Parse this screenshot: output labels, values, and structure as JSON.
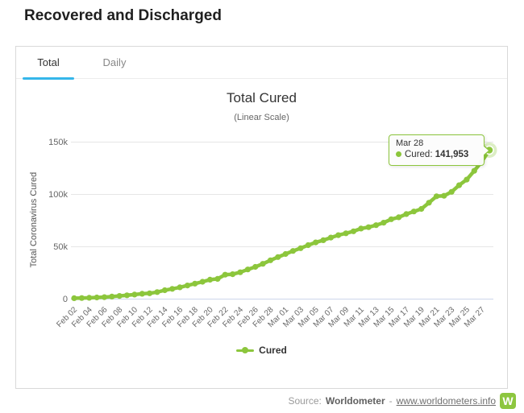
{
  "page": {
    "title": "Recovered and Discharged"
  },
  "tabs": [
    {
      "label": "Total",
      "active": true
    },
    {
      "label": "Daily",
      "active": false
    }
  ],
  "tooltip": {
    "date": "Mar 28",
    "series_label": "Cured:",
    "value": "141,953"
  },
  "footer": {
    "source_label": "Source:",
    "source_name": "Worldometer",
    "separator": "-",
    "link": "www.worldometers.info",
    "logo_letter": "W"
  },
  "colors": {
    "series_green": "#8cc63c",
    "brand_green": "#8dc63f",
    "tab_accent": "#35b6ea",
    "grid": "#e6e6e6",
    "axis_line": "#ccd6eb"
  },
  "chart_data": {
    "type": "line",
    "title": "Total Cured",
    "subtitle": "(Linear Scale)",
    "ylabel": "Total Coronavirus Cured",
    "series": [
      {
        "name": "Cured",
        "color": "#8cc63c"
      }
    ],
    "series_name": "Cured",
    "legend_position": "bottom",
    "grid": true,
    "ylim": [
      0,
      150000
    ],
    "yticks": [
      {
        "v": 0,
        "label": "0"
      },
      {
        "v": 50000,
        "label": "50k"
      },
      {
        "v": 100000,
        "label": "100k"
      },
      {
        "v": 150000,
        "label": "150k"
      }
    ],
    "xtick_every": 2,
    "categories": [
      "Feb 02",
      "Feb 03",
      "Feb 04",
      "Feb 05",
      "Feb 06",
      "Feb 07",
      "Feb 08",
      "Feb 09",
      "Feb 10",
      "Feb 11",
      "Feb 12",
      "Feb 13",
      "Feb 14",
      "Feb 15",
      "Feb 16",
      "Feb 17",
      "Feb 18",
      "Feb 19",
      "Feb 20",
      "Feb 21",
      "Feb 22",
      "Feb 23",
      "Feb 24",
      "Feb 25",
      "Feb 26",
      "Feb 27",
      "Feb 28",
      "Feb 29",
      "Mar 01",
      "Mar 02",
      "Mar 03",
      "Mar 04",
      "Mar 05",
      "Mar 06",
      "Mar 07",
      "Mar 08",
      "Mar 09",
      "Mar 10",
      "Mar 11",
      "Mar 12",
      "Mar 13",
      "Mar 14",
      "Mar 15",
      "Mar 16",
      "Mar 17",
      "Mar 18",
      "Mar 19",
      "Mar 20",
      "Mar 21",
      "Mar 22",
      "Mar 23",
      "Mar 24",
      "Mar 25",
      "Mar 26",
      "Mar 27",
      "Mar 28"
    ],
    "values": [
      475,
      632,
      852,
      1124,
      1487,
      2011,
      2616,
      3244,
      3946,
      4683,
      5150,
      6295,
      8058,
      9395,
      10865,
      12583,
      14352,
      16121,
      18177,
      18890,
      22886,
      23394,
      25227,
      27905,
      30384,
      33277,
      36711,
      39782,
      42716,
      45602,
      48228,
      51170,
      53796,
      55866,
      58358,
      60694,
      62494,
      64404,
      67003,
      68324,
      70251,
      72624,
      75923,
      77776,
      80840,
      83312,
      85745,
      91676,
      97882,
      98334,
      102069,
      108388,
      113787,
      122150,
      130915,
      141953
    ]
  }
}
